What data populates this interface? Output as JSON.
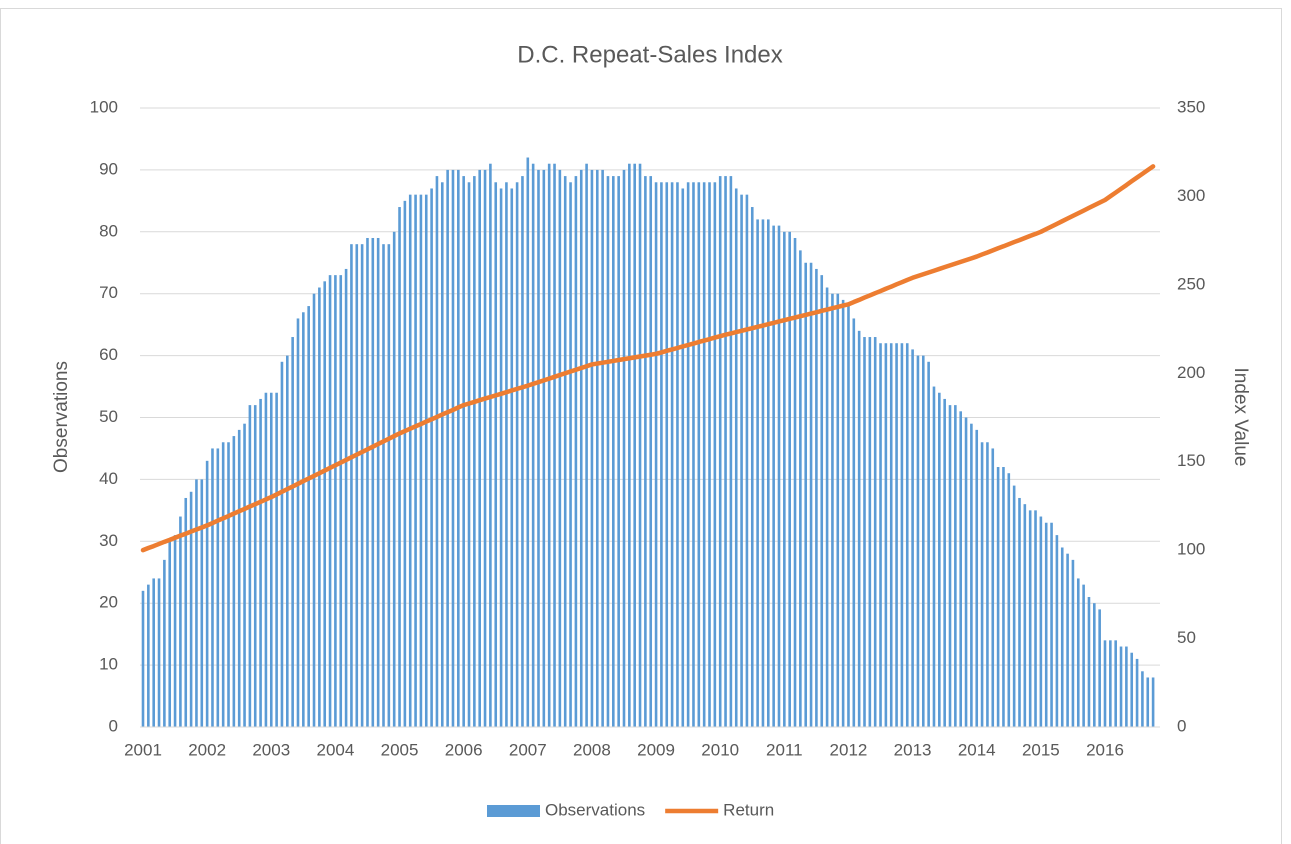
{
  "chart_data": {
    "type": "bar_line",
    "title": "D.C. Repeat-Sales Index",
    "y_label": "Observations",
    "y2_label": "Index Value",
    "categories": [
      "2001",
      null,
      null,
      null,
      null,
      null,
      null,
      null,
      null,
      null,
      null,
      null,
      "2002",
      null,
      null,
      null,
      null,
      null,
      null,
      null,
      null,
      null,
      null,
      null,
      "2003",
      null,
      null,
      null,
      null,
      null,
      null,
      null,
      null,
      null,
      null,
      null,
      "2004",
      null,
      null,
      null,
      null,
      null,
      null,
      null,
      null,
      null,
      null,
      null,
      "2005",
      null,
      null,
      null,
      null,
      null,
      null,
      null,
      null,
      null,
      null,
      null,
      "2006",
      null,
      null,
      null,
      null,
      null,
      null,
      null,
      null,
      null,
      null,
      null,
      "2007",
      null,
      null,
      null,
      null,
      null,
      null,
      null,
      null,
      null,
      null,
      null,
      "2008",
      null,
      null,
      null,
      null,
      null,
      null,
      null,
      null,
      null,
      null,
      null,
      "2009",
      null,
      null,
      null,
      null,
      null,
      null,
      null,
      null,
      null,
      null,
      null,
      "2010",
      null,
      null,
      null,
      null,
      null,
      null,
      null,
      null,
      null,
      null,
      null,
      "2011",
      null,
      null,
      null,
      null,
      null,
      null,
      null,
      null,
      null,
      null,
      null,
      "2012",
      null,
      null,
      null,
      null,
      null,
      null,
      null,
      null,
      null,
      null,
      null,
      "2013",
      null,
      null,
      null,
      null,
      null,
      null,
      null,
      null,
      null,
      null,
      null,
      "2014",
      null,
      null,
      null,
      null,
      null,
      null,
      null,
      null,
      null,
      null,
      null,
      "2015",
      null,
      null,
      null,
      null,
      null,
      null,
      null,
      null,
      null,
      null,
      null,
      "2016",
      null,
      null,
      null,
      null,
      null,
      null,
      null,
      null,
      null
    ],
    "series": [
      {
        "name": "Observations",
        "type": "bar",
        "color": "#5b9bd5",
        "values": [
          22,
          23,
          24,
          24,
          27,
          30,
          31,
          34,
          37,
          38,
          40,
          40,
          43,
          45,
          45,
          46,
          46,
          47,
          48,
          49,
          52,
          52,
          53,
          54,
          54,
          54,
          59,
          60,
          63,
          66,
          67,
          68,
          70,
          71,
          72,
          73,
          73,
          73,
          74,
          78,
          78,
          78,
          79,
          79,
          79,
          78,
          78,
          80,
          84,
          85,
          86,
          86,
          86,
          86,
          87,
          89,
          88,
          90,
          90,
          90,
          89,
          88,
          89,
          90,
          90,
          91,
          88,
          87,
          88,
          87,
          88,
          89,
          92,
          91,
          90,
          90,
          91,
          91,
          90,
          89,
          88,
          89,
          90,
          91,
          90,
          90,
          90,
          89,
          89,
          89,
          90,
          91,
          91,
          91,
          89,
          89,
          88,
          88,
          88,
          88,
          88,
          87,
          88,
          88,
          88,
          88,
          88,
          88,
          89,
          89,
          89,
          87,
          86,
          86,
          84,
          82,
          82,
          82,
          81,
          81,
          80,
          80,
          79,
          77,
          75,
          75,
          74,
          73,
          71,
          70,
          70,
          69,
          68,
          66,
          64,
          63,
          63,
          63,
          62,
          62,
          62,
          62,
          62,
          62,
          61,
          60,
          60,
          59,
          55,
          54,
          53,
          52,
          52,
          51,
          50,
          49,
          48,
          46,
          46,
          45,
          42,
          42,
          41,
          39,
          37,
          36,
          35,
          35,
          34,
          33,
          33,
          31,
          29,
          28,
          27,
          24,
          23,
          21,
          20,
          19,
          14,
          14,
          14,
          13,
          13,
          12,
          11,
          9,
          8,
          8
        ]
      },
      {
        "name": "Return",
        "type": "line",
        "axis": "y2",
        "color": "#ed7d31",
        "values": [
          100,
          101.2,
          102.3,
          103.5,
          104.7,
          105.8,
          107,
          108.2,
          109.3,
          110.5,
          111.7,
          112.8,
          114,
          115.3,
          116.7,
          118,
          119.3,
          120.7,
          122,
          123.3,
          124.7,
          126,
          127.3,
          128.7,
          130,
          131.5,
          133,
          134.5,
          136,
          137.5,
          139,
          140.5,
          142,
          143.5,
          145,
          146.5,
          148,
          149.5,
          151,
          152.5,
          154,
          155.5,
          157,
          158.5,
          160,
          161.5,
          163,
          164.5,
          166,
          167.3,
          168.7,
          170,
          171.3,
          172.7,
          174,
          175.3,
          176.7,
          178,
          179.3,
          180.7,
          182,
          182.9,
          183.8,
          184.8,
          185.7,
          186.6,
          187.5,
          188.4,
          189.3,
          190.3,
          191.2,
          192.1,
          193,
          194,
          195,
          196,
          197,
          198,
          199,
          200,
          201,
          202,
          203,
          204,
          205,
          205.5,
          206,
          206.5,
          207,
          207.5,
          208,
          208.5,
          209,
          209.5,
          210,
          210.5,
          211,
          211.8,
          212.7,
          213.5,
          214.3,
          215.2,
          216,
          216.8,
          217.7,
          218.5,
          219.3,
          220.2,
          221,
          221.8,
          222.5,
          223.3,
          224,
          224.8,
          225.5,
          226.3,
          227,
          227.8,
          228.5,
          229.3,
          230,
          230.8,
          231.5,
          232.3,
          233,
          233.8,
          234.5,
          235.3,
          236,
          236.8,
          237.5,
          238.3,
          239,
          240.3,
          241.5,
          242.8,
          244,
          245.3,
          246.5,
          247.8,
          249,
          250.3,
          251.5,
          252.8,
          254,
          255,
          256,
          257,
          258,
          259,
          260,
          261,
          262,
          263,
          264,
          265,
          266,
          267.2,
          268.3,
          269.5,
          270.7,
          271.8,
          273,
          274.2,
          275.3,
          276.5,
          277.7,
          278.8,
          280,
          281.5,
          283,
          284.5,
          286,
          287.5,
          289,
          290.5,
          292,
          293.5,
          295,
          296.5,
          298,
          300.1,
          302.2,
          304.3,
          306.4,
          308.6,
          310.7,
          312.8,
          314.9,
          317
        ]
      }
    ],
    "ylim": [
      0,
      100
    ],
    "yticks": [
      0,
      10,
      20,
      30,
      40,
      50,
      60,
      70,
      80,
      90,
      100
    ],
    "y2lim": [
      0,
      350
    ],
    "y2ticks": [
      0,
      50,
      100,
      150,
      200,
      250,
      300,
      350
    ],
    "grid": true,
    "legend": "bottom"
  }
}
